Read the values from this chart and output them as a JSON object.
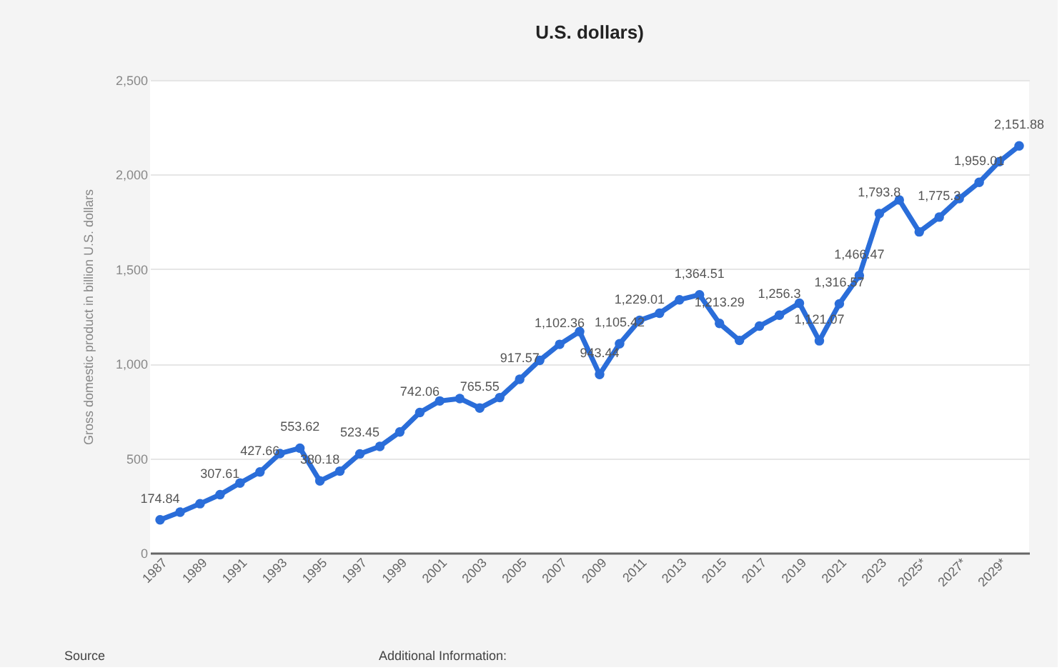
{
  "chart_data": {
    "type": "line",
    "title": "U.S. dollars)",
    "ylabel": "Gross domestic product in billion U.S. dollars",
    "categories": [
      "1987",
      null,
      "1989",
      null,
      "1991",
      null,
      "1993",
      null,
      "1995",
      null,
      "1997",
      null,
      "1999",
      null,
      "2001",
      null,
      "2003",
      null,
      "2005",
      null,
      "2007",
      null,
      "2009",
      null,
      "2011",
      null,
      "2013",
      null,
      "2015",
      null,
      "2017",
      null,
      "2019",
      null,
      "2021",
      null,
      "2023",
      null,
      "2025*",
      null,
      "2027*",
      null,
      "2029*",
      null
    ],
    "series": [
      {
        "color": "#2a6dd9",
        "values": [
          174.84,
          215,
          260,
          307.61,
          369,
          427.66,
          525,
          553.62,
          380.18,
          432,
          523.45,
          563,
          639,
          742.06,
          803,
          816,
          765.55,
          821,
          917.57,
          1018,
          1102.36,
          1170,
          943.44,
          1105.42,
          1229.01,
          1267,
          1338,
          1364.51,
          1213.29,
          1123,
          1199,
          1256.3,
          1320,
          1121.07,
          1316.57,
          1466.47,
          1793.8,
          1866,
          1697,
          1775.3,
          1873,
          1959.01,
          2068,
          2151.88
        ],
        "value_labels": [
          "174.84",
          null,
          null,
          "307.61",
          null,
          "427.66",
          null,
          "553.62",
          "380.18",
          null,
          "523.45",
          null,
          null,
          "742.06",
          null,
          null,
          "765.55",
          null,
          "917.57",
          null,
          "1,102.36",
          null,
          "943.44",
          "1,105.42",
          "1,229.01",
          null,
          null,
          "1,364.51",
          "1,213.29",
          null,
          null,
          "1,256.3",
          null,
          "1,121.07",
          "1,316.57",
          "1,466.47",
          "1,793.8",
          null,
          null,
          "1,775.3",
          null,
          "1,959.01",
          null,
          "2,151.88"
        ]
      }
    ],
    "ylim": [
      0,
      2500
    ],
    "yticks": [
      0,
      500,
      {
        "value": 1000,
        "label": "1,000"
      },
      {
        "value": 1500,
        "label": "1,500"
      },
      {
        "value": 2000,
        "label": "2,000"
      },
      {
        "value": 2500,
        "label": "2,500"
      }
    ],
    "grid": "y",
    "marker": "circle",
    "line_style": "solid",
    "annotations": [
      "Source",
      "Additional Information:"
    ]
  }
}
